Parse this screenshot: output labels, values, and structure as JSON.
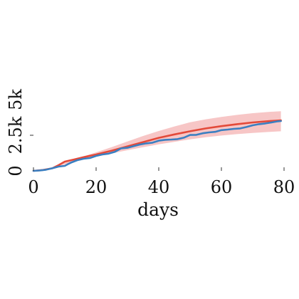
{
  "chart_data": {
    "type": "line",
    "title": "",
    "xlabel": "days",
    "ylabel": "",
    "xlim": [
      0,
      80
    ],
    "ylim": [
      0,
      5000
    ],
    "grid": false,
    "x_ticks": [
      {
        "value": 0,
        "label": "0"
      },
      {
        "value": 20,
        "label": "20"
      },
      {
        "value": 40,
        "label": "40"
      },
      {
        "value": 60,
        "label": "60"
      },
      {
        "value": 80,
        "label": "80"
      }
    ],
    "y_ticks": [
      {
        "value": 0,
        "label": "0"
      },
      {
        "value": 2500,
        "label": "2.5k"
      },
      {
        "value": 5000,
        "label": "5k"
      }
    ],
    "band": {
      "x": [
        0,
        5,
        10,
        15,
        20,
        25,
        30,
        35,
        40,
        45,
        50,
        55,
        60,
        65,
        70,
        75,
        79
      ],
      "lower": [
        0,
        100,
        450,
        760,
        1000,
        1230,
        1450,
        1660,
        1860,
        2040,
        2210,
        2360,
        2480,
        2580,
        2660,
        2730,
        2780
      ],
      "upper": [
        0,
        120,
        600,
        950,
        1300,
        1670,
        2060,
        2450,
        2800,
        3120,
        3410,
        3620,
        3790,
        3930,
        4050,
        4140,
        4190
      ],
      "color": "#f7c6c6"
    },
    "series": [
      {
        "color": "#e34a3a",
        "x": [
          0,
          3,
          6,
          8,
          10,
          13,
          16,
          20,
          25,
          30,
          35,
          40,
          45,
          50,
          55,
          60,
          65,
          70,
          75,
          79
        ],
        "values": [
          0,
          60,
          180,
          400,
          650,
          800,
          960,
          1150,
          1420,
          1720,
          2020,
          2320,
          2560,
          2780,
          2980,
          3140,
          3280,
          3400,
          3490,
          3550
        ]
      },
      {
        "color": "#3a7fc1",
        "x": [
          0,
          2,
          4,
          6,
          8,
          10,
          11,
          12,
          14,
          16,
          18,
          20,
          22,
          24,
          26,
          28,
          30,
          32,
          34,
          36,
          38,
          40,
          42,
          44,
          46,
          48,
          50,
          52,
          54,
          56,
          58,
          60,
          62,
          64,
          66,
          68,
          70,
          72,
          74,
          76,
          78,
          79
        ],
        "values": [
          0,
          30,
          80,
          180,
          300,
          350,
          470,
          580,
          750,
          850,
          900,
          1050,
          1150,
          1210,
          1340,
          1580,
          1620,
          1740,
          1850,
          1930,
          1980,
          2120,
          2180,
          2200,
          2230,
          2330,
          2520,
          2530,
          2640,
          2700,
          2740,
          2860,
          2900,
          2950,
          2980,
          3080,
          3200,
          3280,
          3330,
          3400,
          3480,
          3500
        ]
      }
    ]
  }
}
